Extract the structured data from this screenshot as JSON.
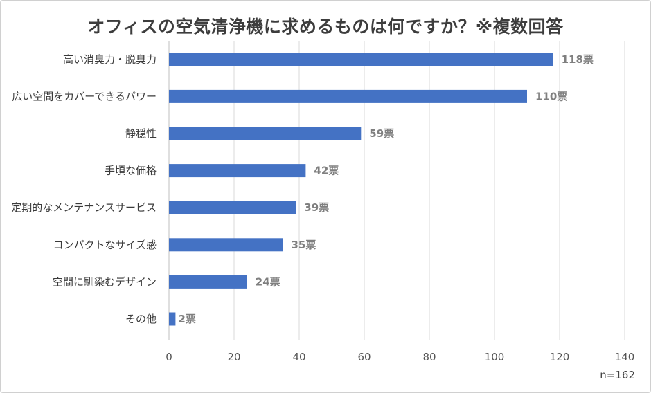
{
  "chart_data": {
    "type": "bar",
    "orientation": "horizontal",
    "title": "オフィスの空気清浄機に求めるものは何ですか？※複数回答",
    "categories": [
      "高い消臭力・脱臭力",
      "広い空間をカバーできるパワー",
      "静穏性",
      "手頃な価格",
      "定期的なメンテナンスサービス",
      "コンパクトなサイズ感",
      "空間に馴染むデザイン",
      "その他"
    ],
    "values": [
      118,
      110,
      59,
      42,
      39,
      35,
      24,
      2
    ],
    "data_labels": [
      "118票",
      "110票",
      "59票",
      "42票",
      "39票",
      "35票",
      "24票",
      "2票"
    ],
    "xlim": [
      0,
      140
    ],
    "xticks": [
      0,
      20,
      40,
      60,
      80,
      100,
      120,
      140
    ],
    "xtick_labels": [
      "0",
      "20",
      "40",
      "60",
      "80",
      "100",
      "120",
      "140"
    ],
    "grid": true,
    "bar_color": "#4472C4",
    "note": "n=162"
  }
}
